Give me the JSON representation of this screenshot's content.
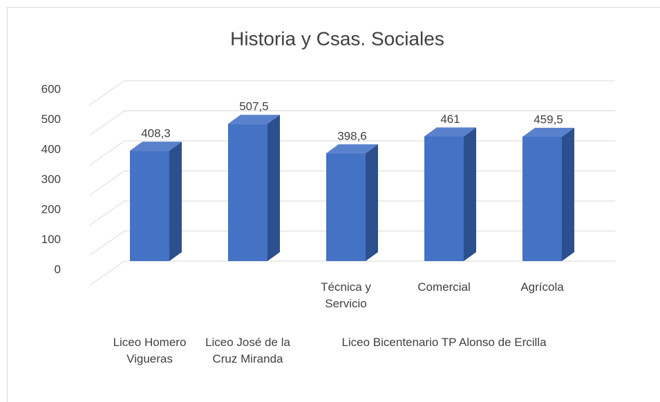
{
  "chart_data": {
    "type": "bar3d",
    "title": "Historia y Csas. Sociales",
    "categories": [
      null,
      null,
      "Técnica y Servicio",
      "Comercial",
      "Agrícola"
    ],
    "groups": [
      "Liceo Homero Vigueras",
      "Liceo José de la Cruz Miranda",
      "Liceo Bicentenario TP Alonso de Ercilla",
      "Liceo Bicentenario TP Alonso de Ercilla",
      "Liceo Bicentenario TP Alonso de Ercilla"
    ],
    "values": [
      408.3,
      507.5,
      398.6,
      461,
      459.5
    ],
    "value_labels": [
      "408,3",
      "507,5",
      "398,6",
      "461",
      "459,5"
    ],
    "color": "#4472c4",
    "ylim": [
      0,
      600
    ],
    "yticks": [
      0,
      100,
      200,
      300,
      400,
      500,
      600
    ],
    "grid": true
  }
}
